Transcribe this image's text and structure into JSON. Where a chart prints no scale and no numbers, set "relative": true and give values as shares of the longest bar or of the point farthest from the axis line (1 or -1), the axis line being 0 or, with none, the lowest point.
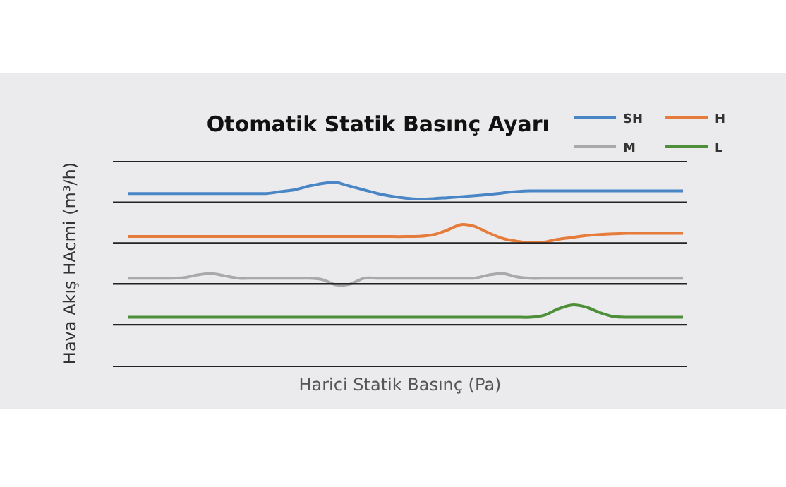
{
  "chart_data": {
    "type": "line",
    "title": "Otomatik Statik Basınç Ayarı",
    "xlabel": "Harici Statik Basınç (Pa)",
    "ylabel": "Hava Akış HAcmi (m³/h)",
    "relative": true,
    "legend": "top right",
    "marker": "none",
    "line_style": "solid",
    "grid": false,
    "categories": [
      null,
      null,
      null,
      null,
      null,
      null,
      null,
      null,
      null,
      null,
      null,
      null,
      null,
      null,
      null,
      null,
      null,
      null,
      null,
      null,
      null,
      null,
      null,
      null,
      null,
      null,
      null,
      null,
      null,
      null,
      null,
      null,
      null,
      null,
      null,
      null,
      null,
      null,
      null,
      null,
      null
    ],
    "series": [
      {
        "name": "SH",
        "color": "#4a86c5",
        "values": [
          0.94,
          0.94,
          0.94,
          0.94,
          0.94,
          0.94,
          0.94,
          0.94,
          0.94,
          0.94,
          0.94,
          0.95,
          0.96,
          0.98,
          0.995,
          1.0,
          0.98,
          0.96,
          0.94,
          0.925,
          0.915,
          0.91,
          0.912,
          0.917,
          0.922,
          0.928,
          0.935,
          0.943,
          0.95,
          0.954,
          0.954,
          0.954,
          0.954,
          0.954,
          0.954,
          0.954,
          0.954,
          0.954,
          0.954,
          0.954,
          0.954
        ]
      },
      {
        "name": "H",
        "color": "#e57c3c",
        "values": [
          0.705,
          0.705,
          0.705,
          0.705,
          0.705,
          0.705,
          0.705,
          0.705,
          0.705,
          0.705,
          0.705,
          0.705,
          0.705,
          0.705,
          0.705,
          0.705,
          0.705,
          0.705,
          0.705,
          0.705,
          0.705,
          0.706,
          0.715,
          0.74,
          0.77,
          0.76,
          0.725,
          0.695,
          0.68,
          0.672,
          0.675,
          0.69,
          0.7,
          0.71,
          0.716,
          0.72,
          0.723,
          0.723,
          0.723,
          0.723,
          0.723
        ]
      },
      {
        "name": "M",
        "color": "#a9a9a9",
        "values": [
          0.477,
          0.477,
          0.477,
          0.477,
          0.48,
          0.495,
          0.503,
          0.49,
          0.477,
          0.477,
          0.477,
          0.477,
          0.477,
          0.477,
          0.47,
          0.441,
          0.445,
          0.477,
          0.477,
          0.477,
          0.477,
          0.477,
          0.477,
          0.477,
          0.477,
          0.478,
          0.495,
          0.503,
          0.485,
          0.477,
          0.477,
          0.477,
          0.477,
          0.477,
          0.477,
          0.477,
          0.477,
          0.477,
          0.477,
          0.477,
          0.477
        ]
      },
      {
        "name": "L",
        "color": "#4e8f3a",
        "values": [
          0.264,
          0.264,
          0.264,
          0.264,
          0.264,
          0.264,
          0.264,
          0.264,
          0.264,
          0.264,
          0.264,
          0.264,
          0.264,
          0.264,
          0.264,
          0.264,
          0.264,
          0.264,
          0.264,
          0.264,
          0.264,
          0.264,
          0.264,
          0.264,
          0.264,
          0.264,
          0.264,
          0.264,
          0.264,
          0.264,
          0.275,
          0.31,
          0.331,
          0.32,
          0.29,
          0.268,
          0.264,
          0.264,
          0.264,
          0.264,
          0.264
        ]
      }
    ],
    "ref_lines": [
      {
        "axis": "y",
        "value": 0.223,
        "color": "#222222"
      },
      {
        "axis": "y",
        "value": 0.446,
        "color": "#222222"
      },
      {
        "axis": "y",
        "value": 0.669,
        "color": "#222222"
      },
      {
        "axis": "y",
        "value": 0.892,
        "color": "#222222"
      },
      {
        "axis": "y",
        "value": 1.118,
        "color": "#222222"
      }
    ]
  }
}
